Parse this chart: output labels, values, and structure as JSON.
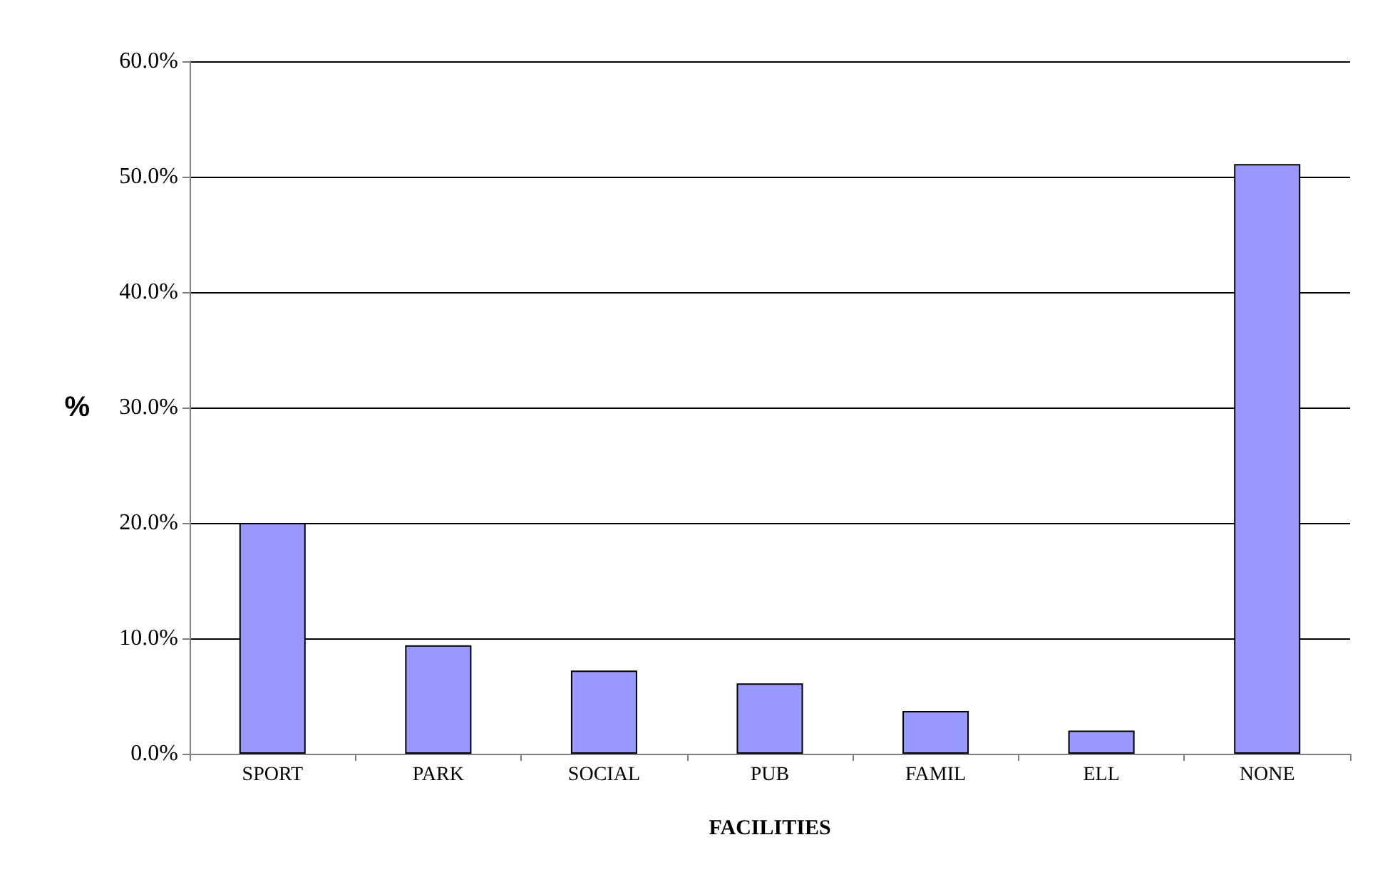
{
  "chart_data": {
    "type": "bar",
    "ylabel": "%",
    "xlabel": "FACILITIES",
    "categories": [
      "SPORT",
      "PARK",
      "SOCIAL",
      "PUB",
      "FAMIL",
      "ELL",
      "NONE"
    ],
    "values": [
      20.0,
      9.4,
      7.2,
      6.1,
      3.7,
      2.0,
      51.1
    ],
    "color": "#9999ff",
    "ylim": [
      0,
      60
    ],
    "yticks": [
      {
        "value": 0,
        "label": "0.0%"
      },
      {
        "value": 10,
        "label": "10.0%"
      },
      {
        "value": 20,
        "label": "20.0%"
      },
      {
        "value": 30,
        "label": "30.0%"
      },
      {
        "value": 40,
        "label": "40.0%"
      },
      {
        "value": 50,
        "label": "50.0%"
      },
      {
        "value": 60,
        "label": "60.0%"
      }
    ],
    "grid": "y"
  }
}
